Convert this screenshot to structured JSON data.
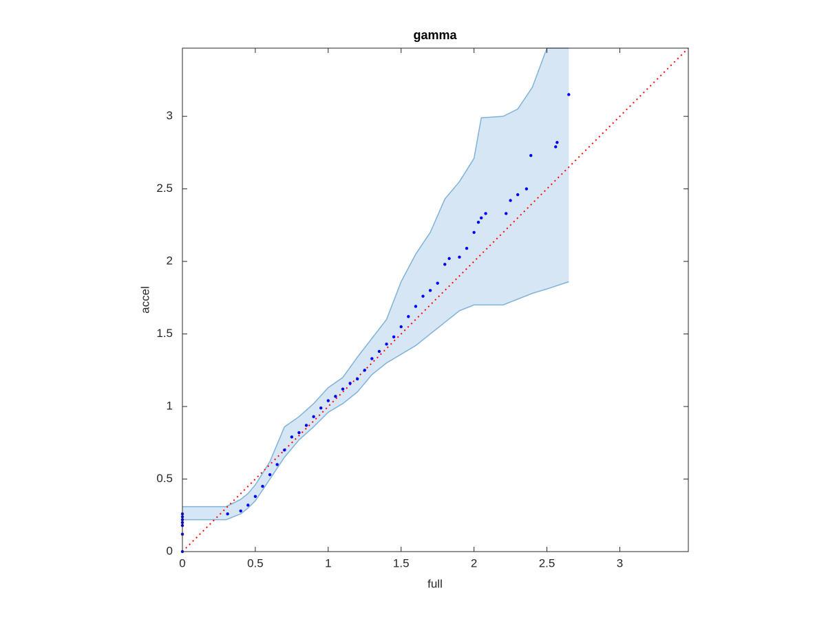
{
  "chart_data": {
    "type": "scatter",
    "title": "gamma",
    "x_label": "full",
    "y_label": "accel",
    "xlim": [
      0,
      3.47
    ],
    "ylim": [
      0,
      3.47
    ],
    "xticks": [
      0,
      0.5,
      1,
      1.5,
      2,
      2.5,
      3
    ],
    "yticks": [
      0,
      0.5,
      1,
      1.5,
      2,
      2.5,
      3
    ],
    "points": {
      "color": "#0000ff",
      "x": [
        0,
        0,
        0,
        0,
        0,
        0,
        0,
        0.31,
        0.4,
        0.45,
        0.5,
        0.55,
        0.6,
        0.65,
        0.7,
        0.75,
        0.8,
        0.85,
        0.9,
        0.95,
        1.0,
        1.05,
        1.1,
        1.15,
        1.2,
        1.25,
        1.3,
        1.35,
        1.4,
        1.45,
        1.5,
        1.55,
        1.6,
        1.65,
        1.7,
        1.75,
        1.8,
        1.83,
        1.9,
        1.95,
        2.0,
        2.03,
        2.05,
        2.08,
        2.22,
        2.25,
        2.3,
        2.36,
        2.39,
        2.56,
        2.57,
        2.65
      ],
      "y": [
        0,
        0.12,
        0.18,
        0.2,
        0.22,
        0.24,
        0.26,
        0.26,
        0.28,
        0.32,
        0.38,
        0.45,
        0.53,
        0.6,
        0.7,
        0.79,
        0.82,
        0.87,
        0.93,
        0.99,
        1.04,
        1.07,
        1.12,
        1.16,
        1.19,
        1.25,
        1.33,
        1.38,
        1.43,
        1.48,
        1.55,
        1.62,
        1.69,
        1.76,
        1.8,
        1.85,
        1.98,
        2.02,
        2.03,
        2.09,
        2.2,
        2.27,
        2.3,
        2.33,
        2.33,
        2.42,
        2.46,
        2.5,
        2.73,
        2.79,
        2.82,
        3.15
      ]
    },
    "band": {
      "color": "#d6e6f4",
      "edge_color": "#7fb2d9",
      "x": [
        0,
        0.3,
        0.4,
        0.45,
        0.5,
        0.6,
        0.7,
        0.8,
        0.9,
        1.0,
        1.1,
        1.2,
        1.3,
        1.4,
        1.5,
        1.6,
        1.7,
        1.8,
        1.9,
        2.0,
        2.05,
        2.2,
        2.3,
        2.4,
        2.5,
        2.65
      ],
      "upper": [
        0.31,
        0.31,
        0.36,
        0.4,
        0.46,
        0.62,
        0.86,
        0.93,
        1.02,
        1.13,
        1.2,
        1.34,
        1.47,
        1.6,
        1.86,
        2.05,
        2.2,
        2.43,
        2.55,
        2.71,
        2.99,
        3.0,
        3.05,
        3.2,
        3.47,
        3.47
      ],
      "lower": [
        0.22,
        0.22,
        0.26,
        0.3,
        0.35,
        0.5,
        0.65,
        0.77,
        0.86,
        0.96,
        1.02,
        1.1,
        1.22,
        1.3,
        1.36,
        1.42,
        1.5,
        1.58,
        1.66,
        1.7,
        1.7,
        1.7,
        1.74,
        1.78,
        1.81,
        1.86
      ]
    },
    "reference_line": {
      "x": [
        0,
        3.47
      ],
      "y": [
        0,
        3.47
      ],
      "color": "#ff0000"
    }
  }
}
